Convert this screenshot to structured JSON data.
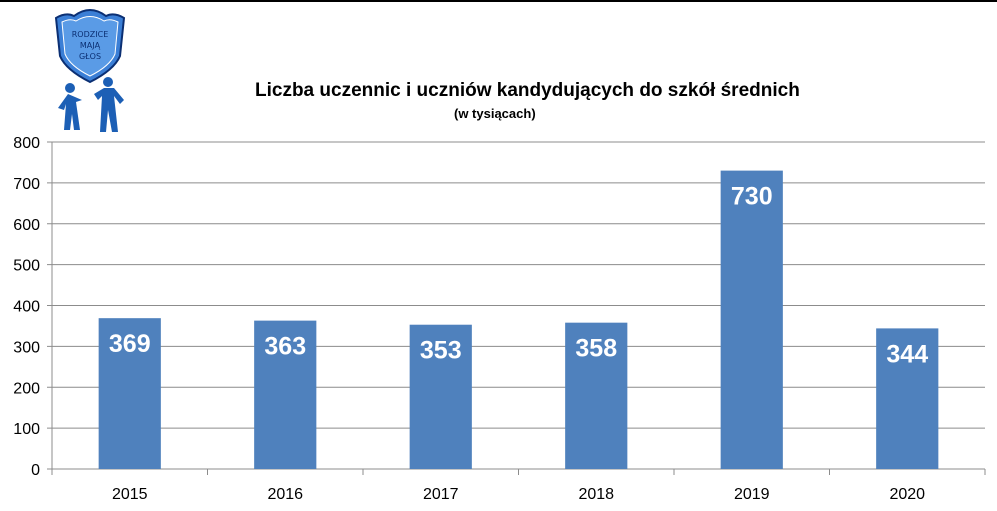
{
  "logo": {
    "lines": [
      "RODZICE",
      "MAJĄ",
      "GŁOS"
    ],
    "colors": {
      "shield": "#3b7fd6",
      "shield_dark": "#0b2f73",
      "figure": "#1c5fb5"
    }
  },
  "chart_data": {
    "type": "bar",
    "title": "Liczba uczennic i uczniów kandydujących do szkół średnich",
    "subtitle": "(w tysiącach)",
    "xlabel": "",
    "ylabel": "",
    "categories": [
      "2015",
      "2016",
      "2017",
      "2018",
      "2019",
      "2020"
    ],
    "values": [
      369,
      363,
      353,
      358,
      730,
      344
    ],
    "data_labels": [
      "369",
      "363",
      "353",
      "358",
      "730",
      "344"
    ],
    "ylim": [
      0,
      800
    ],
    "yticks": [
      0,
      100,
      200,
      300,
      400,
      500,
      600,
      700,
      800
    ],
    "ytick_labels": [
      "0",
      "100",
      "200",
      "300",
      "400",
      "500",
      "600",
      "700",
      "800"
    ],
    "grid": true,
    "legend": "none",
    "colors": {
      "bar": "#4f81bd",
      "grid": "#8c8c8c",
      "axis": "#8c8c8c",
      "data_label": "#ffffff"
    }
  }
}
